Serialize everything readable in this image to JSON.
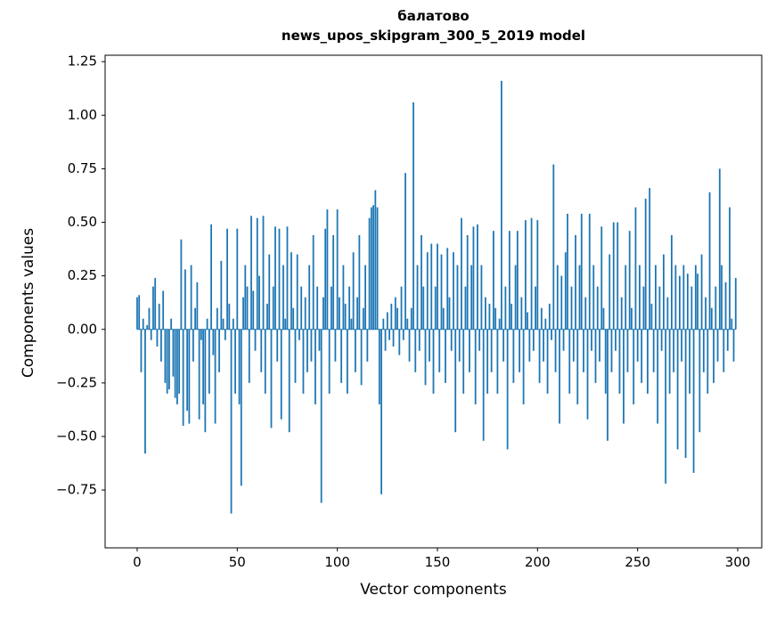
{
  "title": {
    "line1": "балатово",
    "line2": "news_upos_skipgram_300_5_2019 model"
  },
  "chart_data": {
    "type": "bar",
    "title": "балатово — news_upos_skipgram_300_5_2019 model",
    "xlabel": "Vector components",
    "ylabel": "Components values",
    "xlim": [
      -16,
      312
    ],
    "ylim": [
      -1.02,
      1.28
    ],
    "xticks": [
      0,
      50,
      100,
      150,
      200,
      250,
      300
    ],
    "yticks": [
      -0.75,
      -0.5,
      -0.25,
      0.0,
      0.25,
      0.5,
      0.75,
      1.0,
      1.25
    ],
    "grid": false,
    "legend": "none",
    "bar_color": "#1f77b4",
    "bar_width": 0.8,
    "x_start": 0,
    "values": [
      0.15,
      0.16,
      -0.2,
      0.05,
      -0.58,
      0.02,
      0.1,
      -0.05,
      0.2,
      0.24,
      -0.08,
      0.12,
      -0.15,
      0.18,
      -0.25,
      -0.3,
      -0.28,
      0.05,
      -0.22,
      -0.32,
      -0.35,
      -0.3,
      0.42,
      -0.45,
      0.28,
      -0.38,
      -0.44,
      0.3,
      -0.15,
      0.1,
      0.22,
      -0.42,
      -0.05,
      -0.35,
      -0.48,
      0.05,
      -0.3,
      0.49,
      -0.12,
      -0.44,
      0.1,
      -0.2,
      0.32,
      0.05,
      -0.05,
      0.47,
      0.12,
      -0.86,
      0.05,
      -0.3,
      0.47,
      -0.35,
      -0.73,
      0.15,
      0.3,
      0.2,
      -0.25,
      0.53,
      0.18,
      -0.1,
      0.52,
      0.25,
      -0.2,
      0.53,
      -0.3,
      0.12,
      0.35,
      -0.46,
      0.2,
      0.48,
      -0.15,
      0.47,
      -0.42,
      0.3,
      0.05,
      0.48,
      -0.48,
      0.36,
      0.1,
      -0.25,
      0.35,
      -0.05,
      0.2,
      -0.3,
      0.15,
      -0.2,
      0.3,
      -0.15,
      0.44,
      -0.35,
      0.2,
      -0.1,
      -0.81,
      0.15,
      0.47,
      0.56,
      -0.3,
      0.2,
      0.44,
      -0.15,
      0.56,
      0.15,
      -0.25,
      0.3,
      0.12,
      -0.3,
      0.2,
      0.05,
      0.36,
      -0.2,
      0.15,
      0.44,
      -0.26,
      0.1,
      0.3,
      -0.15,
      0.52,
      0.57,
      0.58,
      0.65,
      0.57,
      -0.35,
      -0.77,
      0.05,
      -0.1,
      0.08,
      -0.05,
      0.12,
      -0.08,
      0.15,
      0.1,
      -0.12,
      0.2,
      -0.05,
      0.73,
      0.05,
      -0.15,
      0.1,
      1.06,
      -0.2,
      0.3,
      -0.1,
      0.44,
      0.2,
      -0.26,
      0.36,
      -0.15,
      0.4,
      -0.3,
      0.2,
      0.4,
      -0.2,
      0.35,
      0.1,
      -0.25,
      0.38,
      0.15,
      -0.1,
      0.36,
      -0.48,
      0.3,
      -0.15,
      0.52,
      -0.3,
      0.2,
      0.44,
      -0.2,
      0.3,
      0.48,
      -0.35,
      0.49,
      -0.1,
      0.3,
      -0.52,
      0.15,
      -0.3,
      0.12,
      -0.2,
      0.46,
      0.1,
      -0.3,
      0.05,
      1.16,
      -0.15,
      0.2,
      -0.56,
      0.46,
      0.12,
      -0.25,
      0.3,
      0.46,
      -0.2,
      0.15,
      -0.35,
      0.51,
      0.08,
      -0.15,
      0.52,
      -0.1,
      0.2,
      0.51,
      -0.25,
      0.1,
      -0.15,
      0.05,
      -0.3,
      0.12,
      -0.05,
      0.77,
      -0.2,
      0.3,
      -0.44,
      0.25,
      -0.1,
      0.36,
      0.54,
      -0.3,
      0.2,
      -0.15,
      0.44,
      -0.35,
      0.3,
      0.54,
      -0.2,
      0.15,
      -0.42,
      0.54,
      -0.1,
      0.3,
      -0.25,
      0.2,
      -0.15,
      0.48,
      0.1,
      -0.3,
      -0.52,
      0.35,
      -0.2,
      0.5,
      -0.1,
      0.5,
      -0.3,
      0.15,
      -0.44,
      0.3,
      -0.2,
      0.46,
      0.1,
      -0.35,
      0.57,
      -0.15,
      0.3,
      -0.25,
      0.2,
      0.61,
      -0.3,
      0.66,
      0.12,
      -0.2,
      0.3,
      -0.44,
      0.2,
      -0.1,
      0.35,
      -0.72,
      0.15,
      -0.3,
      0.44,
      -0.2,
      0.3,
      -0.56,
      0.25,
      -0.15,
      0.3,
      -0.6,
      0.26,
      -0.3,
      0.2,
      -0.67,
      0.3,
      0.26,
      -0.48,
      0.35,
      -0.2,
      0.15,
      -0.3,
      0.64,
      0.1,
      -0.25,
      0.2,
      -0.15,
      0.75,
      0.3,
      -0.2,
      0.22,
      -0.1,
      0.57,
      0.05,
      -0.15,
      0.24
    ]
  },
  "colors": {
    "bar": "#1f77b4",
    "axis": "#000000",
    "background": "#ffffff"
  }
}
